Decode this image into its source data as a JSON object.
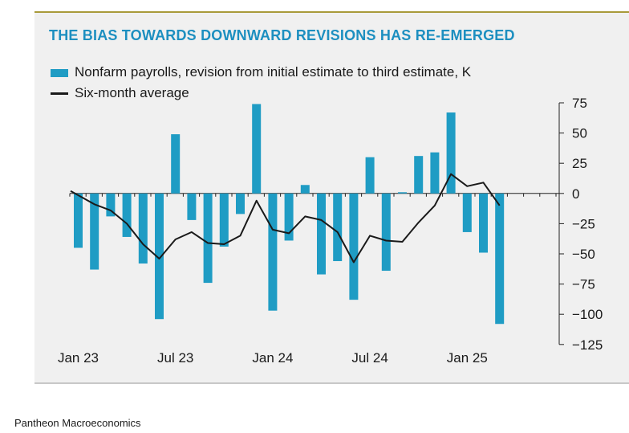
{
  "chart_data": {
    "type": "bar",
    "title": "THE BIAS TOWARDS DOWNWARD REVISIONS HAS RE-EMERGED",
    "xlabel": "",
    "ylabel": "",
    "ylim": [
      -125,
      75
    ],
    "yticks": [
      75,
      50,
      25,
      0,
      -25,
      -50,
      -75,
      -100,
      -125
    ],
    "xtick_labels": [
      "Jan 23",
      "Jul 23",
      "Jan 24",
      "Jul 24",
      "Jan 25"
    ],
    "categories": [
      "Jan 23",
      "Feb 23",
      "Mar 23",
      "Apr 23",
      "May 23",
      "Jun 23",
      "Jul 23",
      "Aug 23",
      "Sep 23",
      "Oct 23",
      "Nov 23",
      "Dec 23",
      "Jan 24",
      "Feb 24",
      "Mar 24",
      "Apr 24",
      "May 24",
      "Jun 24",
      "Jul 24",
      "Aug 24",
      "Sep 24",
      "Oct 24",
      "Nov 24",
      "Dec 24",
      "Jan 25",
      "Feb 25",
      "Mar 25"
    ],
    "series": [
      {
        "name": "Nonfarm payrolls, revision from initial estimate to third estimate, K",
        "kind": "bar",
        "color": "#1f9cc4",
        "values": [
          -45,
          -63,
          -19,
          -36,
          -58,
          -104,
          49,
          -22,
          -74,
          -44,
          -17,
          74,
          -97,
          -39,
          7,
          -67,
          -56,
          -88,
          30,
          -64,
          1,
          31,
          34,
          67,
          -32,
          -49,
          -108
        ]
      },
      {
        "name": "Six-month average",
        "kind": "line",
        "color": "#1a1a1a",
        "values": [
          2,
          -9,
          -14,
          -25,
          -42,
          -54,
          -38,
          -32,
          -41,
          -42,
          -35,
          -6,
          -30,
          -33,
          -19,
          -22,
          -32,
          -57,
          -35,
          -39,
          -40,
          -24,
          -10,
          16,
          6,
          9,
          -10
        ]
      }
    ]
  },
  "legend": {
    "bar_label": "Nonfarm payrolls, revision from initial estimate to third estimate, K",
    "line_label": "Six-month average"
  },
  "source": "Pantheon Macroeconomics"
}
